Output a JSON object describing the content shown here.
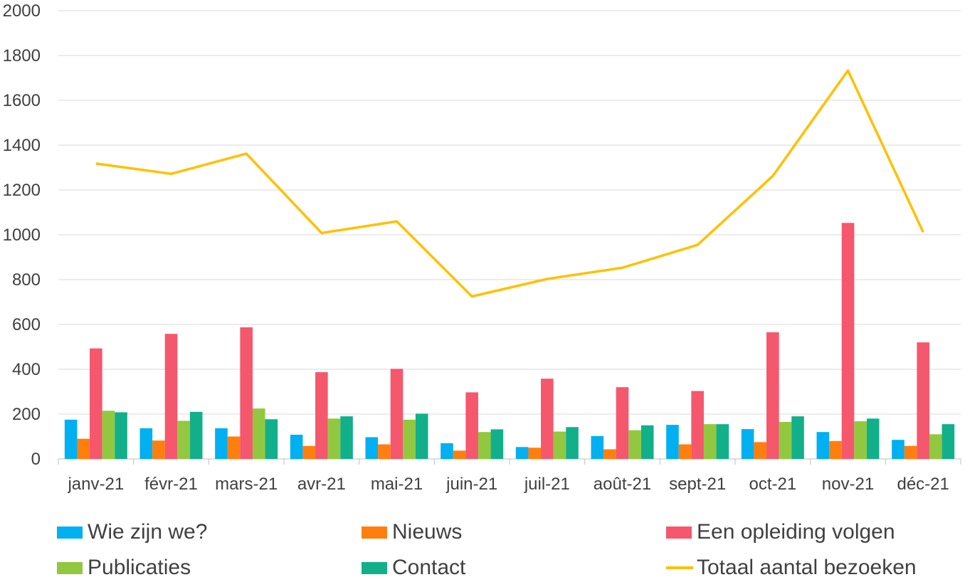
{
  "chart_data": {
    "type": "bar",
    "title": "",
    "xlabel": "",
    "ylabel": "",
    "ylim": [
      0,
      2000
    ],
    "yticks": [
      0,
      200,
      400,
      600,
      800,
      1000,
      1200,
      1400,
      1600,
      1800,
      2000
    ],
    "grid": true,
    "legend_position": "bottom",
    "categories": [
      "janv-21",
      "févr-21",
      "mars-21",
      "avr-21",
      "mai-21",
      "juin-21",
      "juil-21",
      "août-21",
      "sept-21",
      "oct-21",
      "nov-21",
      "déc-21"
    ],
    "series": [
      {
        "name": "Wie zijn we?",
        "type": "bar",
        "color": "#00B0F0",
        "values": [
          175,
          137,
          137,
          108,
          97,
          70,
          53,
          102,
          152,
          133,
          120,
          85
        ]
      },
      {
        "name": "Nieuws",
        "type": "bar",
        "color": "#FF7F0E",
        "values": [
          90,
          82,
          100,
          58,
          65,
          37,
          50,
          43,
          65,
          75,
          80,
          58
        ]
      },
      {
        "name": "Een opleiding volgen",
        "type": "bar",
        "color": "#F5576C",
        "values": [
          493,
          558,
          587,
          387,
          402,
          297,
          358,
          320,
          303,
          565,
          1053,
          520
        ]
      },
      {
        "name": "Publicaties",
        "type": "bar",
        "color": "#92C840",
        "values": [
          215,
          170,
          225,
          180,
          175,
          120,
          122,
          128,
          155,
          165,
          168,
          110
        ]
      },
      {
        "name": "Contact",
        "type": "bar",
        "color": "#11B08A",
        "values": [
          208,
          210,
          177,
          190,
          202,
          132,
          142,
          150,
          155,
          190,
          180,
          155
        ]
      },
      {
        "name": "Totaal aantal bezoeken",
        "type": "line",
        "color": "#FFC000",
        "values": [
          1318,
          1272,
          1362,
          1008,
          1060,
          725,
          803,
          853,
          955,
          1262,
          1733,
          1012
        ]
      }
    ]
  }
}
